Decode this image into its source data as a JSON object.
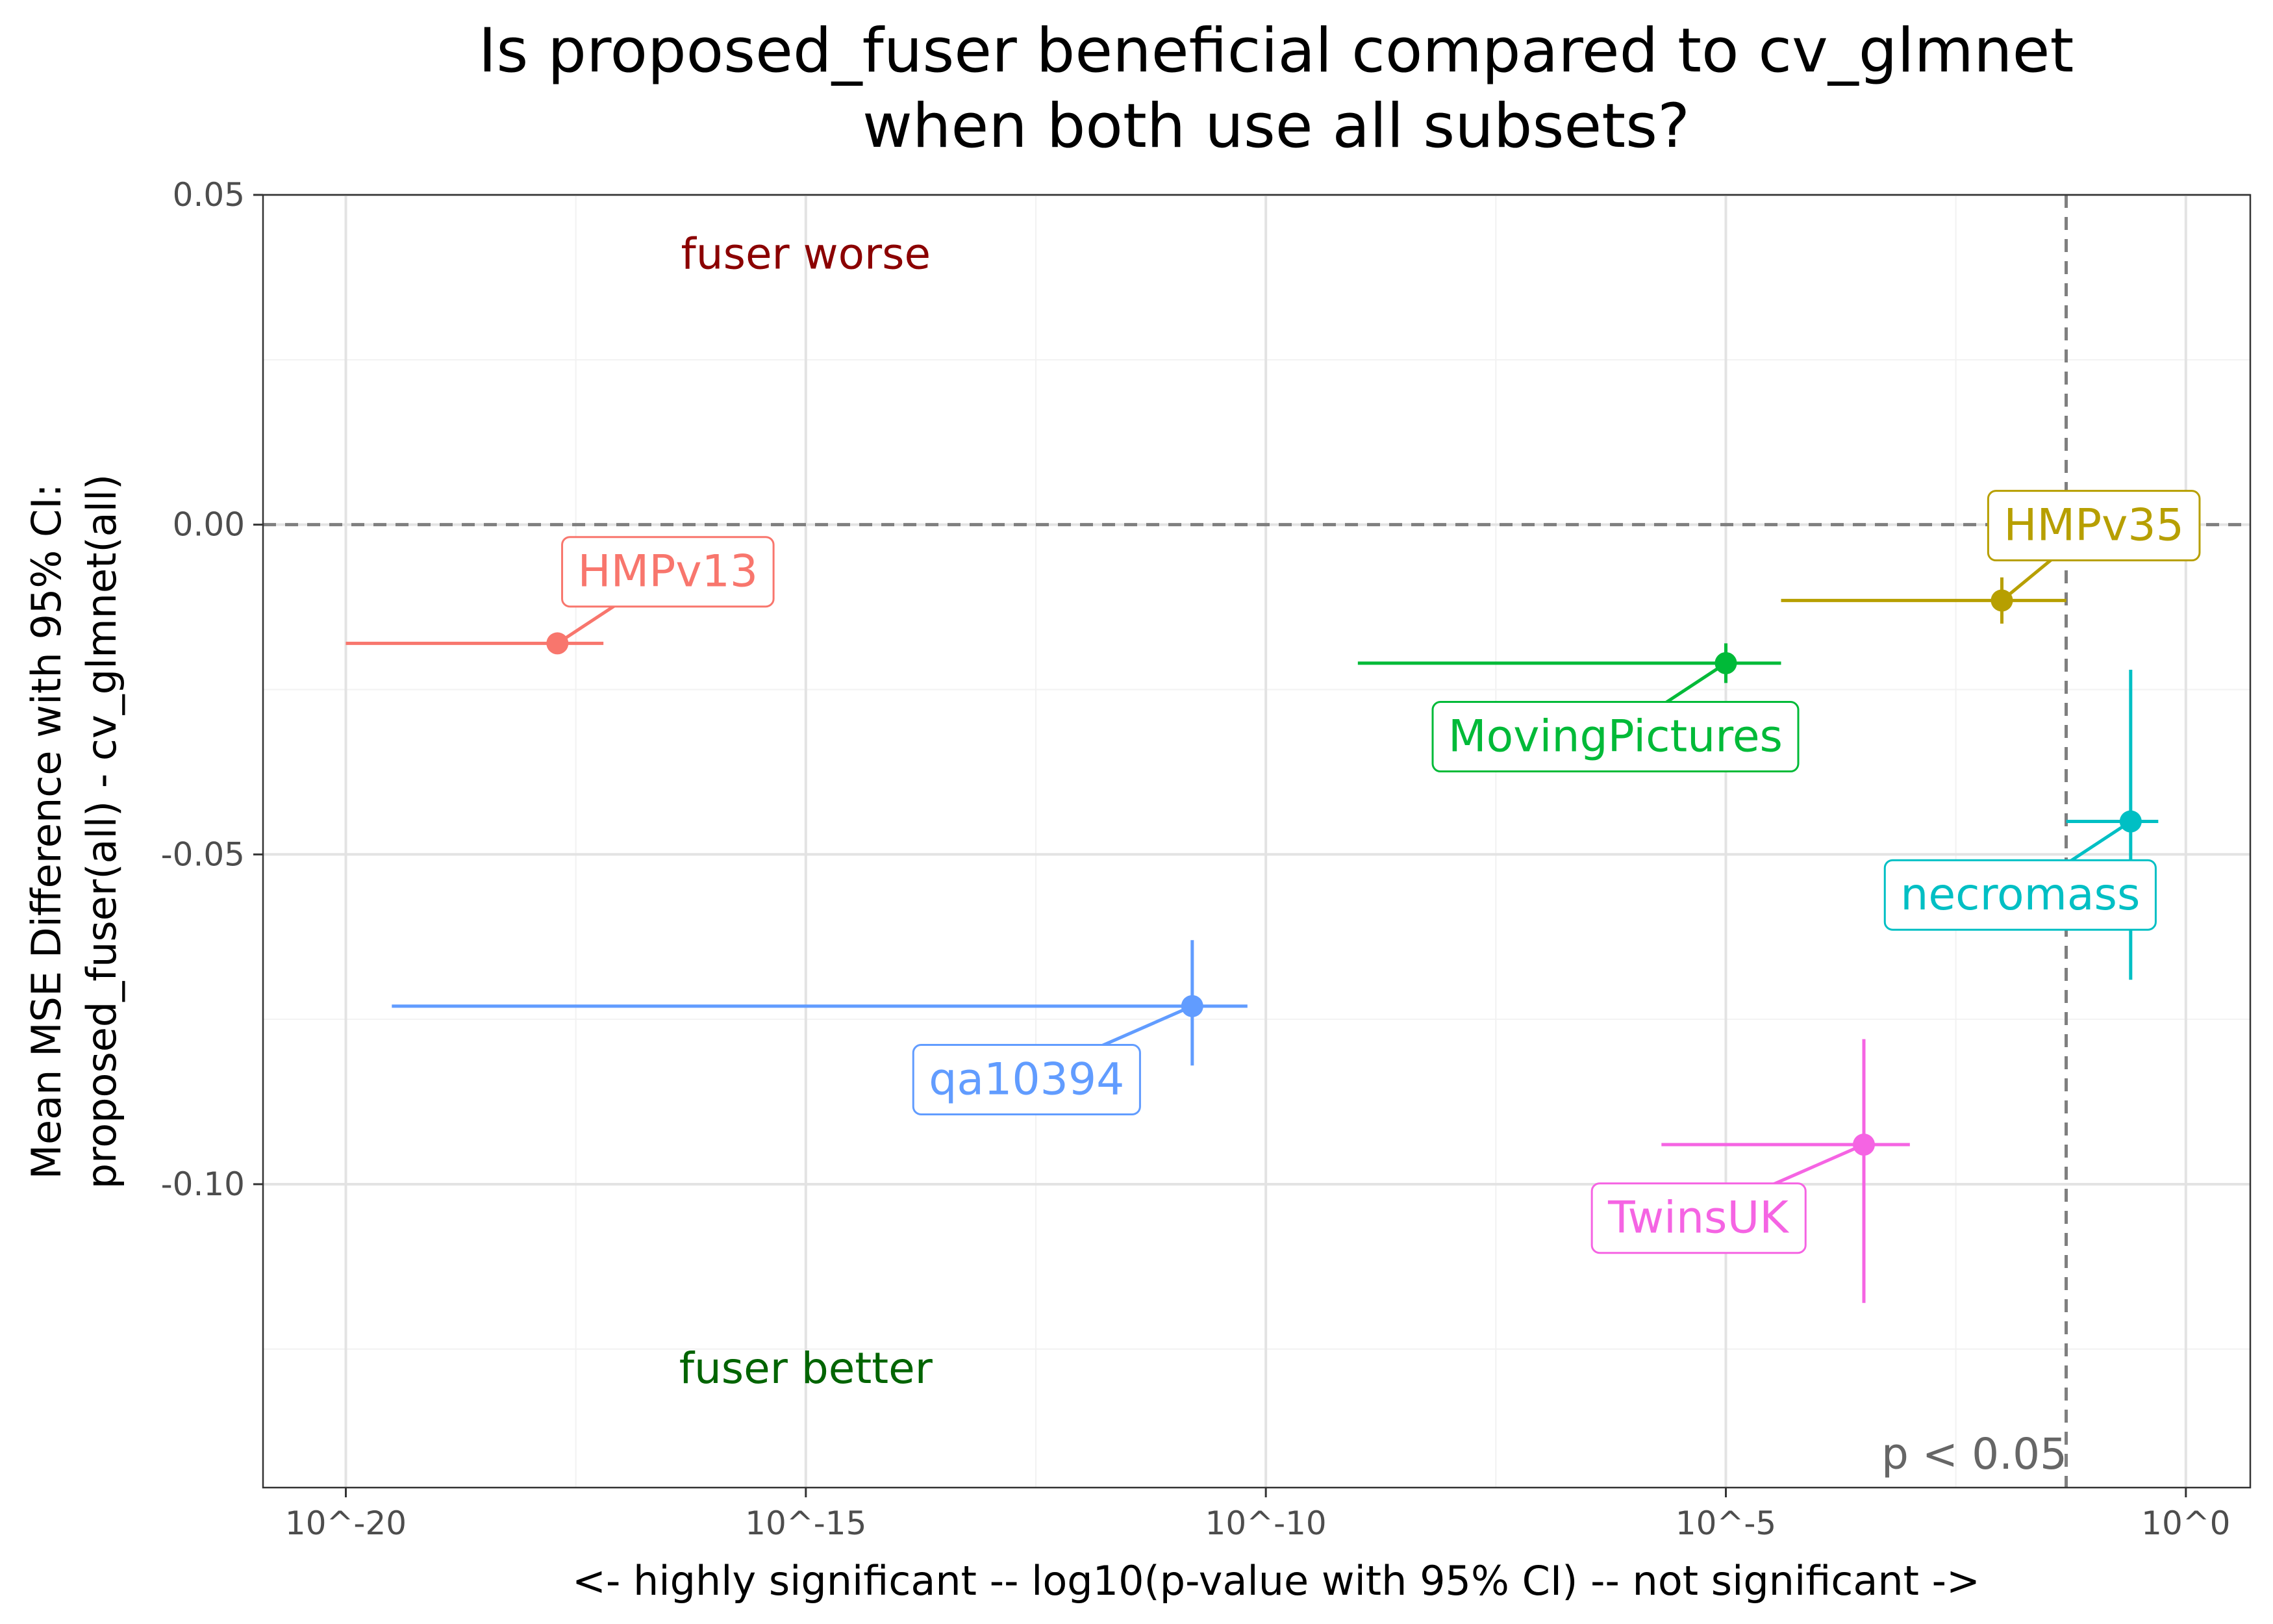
{
  "chart_data": {
    "type": "scatter",
    "title": [
      "Is proposed_fuser beneficial compared to cv_glmnet",
      "when both use all subsets?"
    ],
    "xlabel": "<- highly significant -- log10(p-value with 95% CI) -- not significant ->",
    "ylabel": [
      "Mean MSE Difference with 95% CI:",
      "proposed_fuser(all) - cv_glmnet(all)"
    ],
    "xlim": [
      -20.9,
      0.7
    ],
    "ylim": [
      -0.146,
      0.05
    ],
    "x_ticks": [
      {
        "value": -20,
        "label": "10^-20"
      },
      {
        "value": -15,
        "label": "10^-15"
      },
      {
        "value": -10,
        "label": "10^-10"
      },
      {
        "value": -5,
        "label": "10^-5"
      },
      {
        "value": 0,
        "label": "10^0"
      }
    ],
    "y_ticks": [
      {
        "value": 0.05,
        "label": "0.05"
      },
      {
        "value": 0.0,
        "label": "0.00"
      },
      {
        "value": -0.05,
        "label": "-0.05"
      },
      {
        "value": -0.1,
        "label": "-0.10"
      }
    ],
    "x_minor": [
      -17.5,
      -12.5,
      -7.5,
      -2.5
    ],
    "y_minor": [
      0.025,
      -0.025,
      -0.075,
      -0.125
    ],
    "grid": true,
    "reference_lines": {
      "y": 0.0,
      "x": -1.301
    },
    "annotations": [
      {
        "text": "fuser worse",
        "x": -15.0,
        "y": 0.041,
        "color": "#8b0000"
      },
      {
        "text": "fuser better",
        "x": -15.0,
        "y": -0.128,
        "color": "#006400"
      },
      {
        "text": "p < 0.05",
        "x": -2.3,
        "y": -0.141,
        "color": "#666666"
      }
    ],
    "series": [
      {
        "name": "HMPv13",
        "color": "#f8766d",
        "x": -17.7,
        "x_low": -20.0,
        "x_high": -17.2,
        "y": -0.018,
        "y_low": -0.018,
        "y_high": -0.018,
        "label_x": -16.5,
        "label_y": -0.007
      },
      {
        "name": "HMPv35",
        "color": "#b79f00",
        "x": -2.0,
        "x_low": -4.4,
        "x_high": -1.3,
        "y": -0.0115,
        "y_low": -0.015,
        "y_high": -0.008,
        "label_x": -1.0,
        "label_y": 0.0
      },
      {
        "name": "MovingPictures",
        "color": "#00ba38",
        "x": -5.0,
        "x_low": -9.0,
        "x_high": -4.4,
        "y": -0.021,
        "y_low": -0.024,
        "y_high": -0.018,
        "label_x": -6.2,
        "label_y": -0.032
      },
      {
        "name": "necromass",
        "color": "#00bfc4",
        "x": -0.6,
        "x_low": -1.3,
        "x_high": -0.3,
        "y": -0.045,
        "y_low": -0.069,
        "y_high": -0.022,
        "label_x": -1.8,
        "label_y": -0.056
      },
      {
        "name": "qa10394",
        "color": "#619cff",
        "x": -10.8,
        "x_low": -19.5,
        "x_high": -10.2,
        "y": -0.073,
        "y_low": -0.082,
        "y_high": -0.063,
        "label_x": -12.6,
        "label_y": -0.084
      },
      {
        "name": "TwinsUK",
        "color": "#f564e3",
        "x": -3.5,
        "x_low": -5.7,
        "x_high": -3.0,
        "y": -0.094,
        "y_low": -0.118,
        "y_high": -0.078,
        "label_x": -5.3,
        "label_y": -0.105
      }
    ]
  }
}
